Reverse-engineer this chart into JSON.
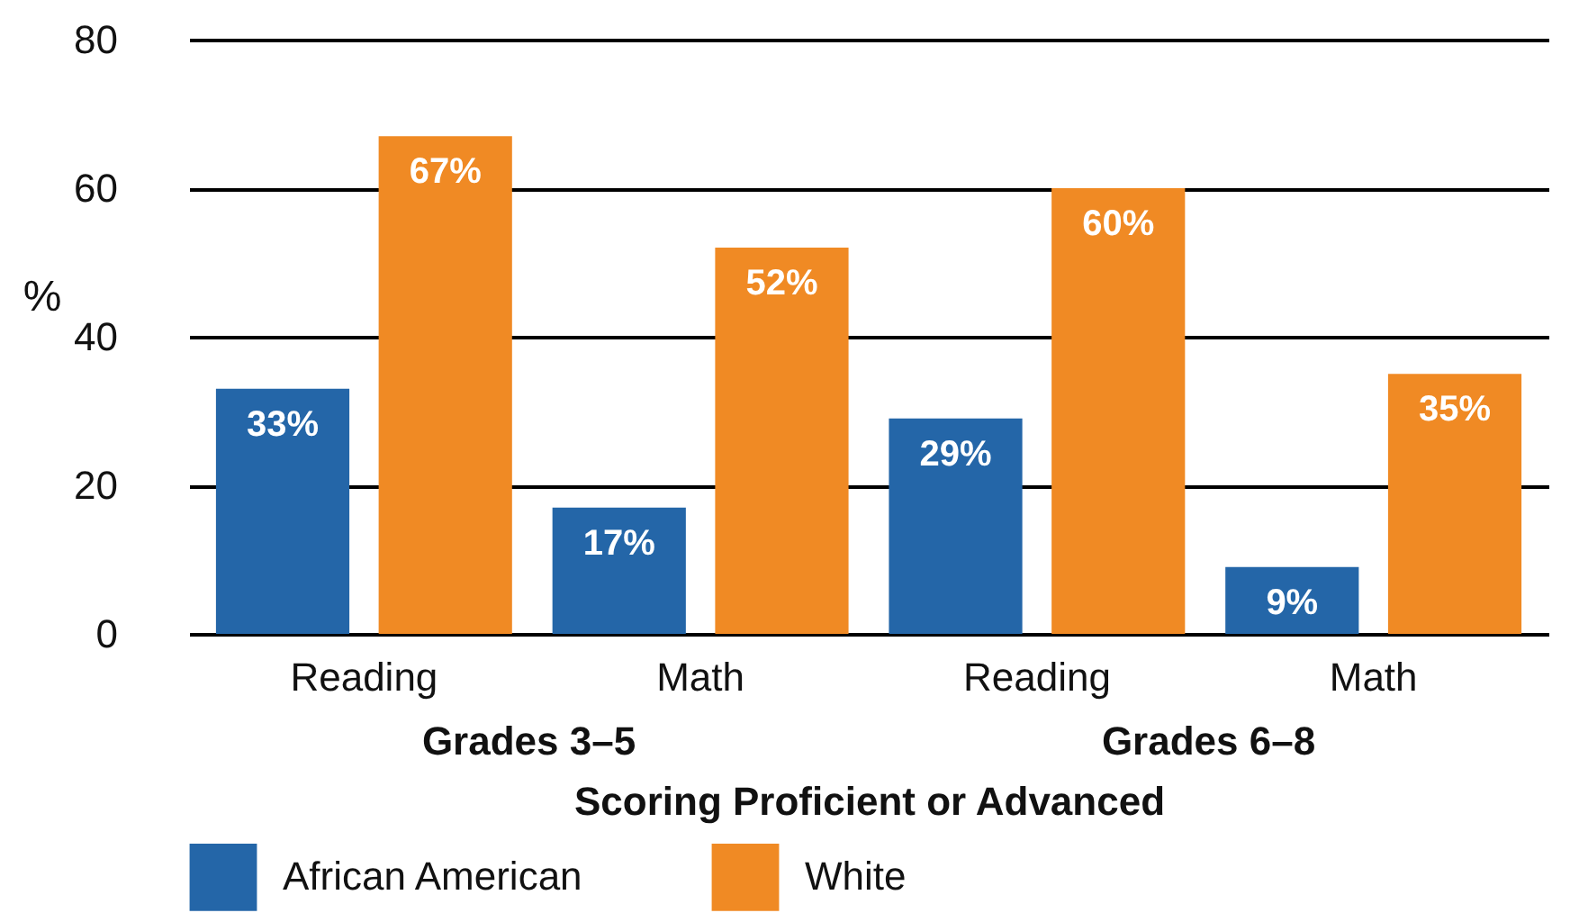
{
  "chart_data": {
    "type": "bar",
    "xlabel": "Scoring Proficient or Advanced",
    "ylabel": "%",
    "categories": [
      "Reading",
      "Math",
      "Reading",
      "Math"
    ],
    "series": [
      {
        "name": "African American",
        "color": "#2466a8",
        "values": [
          33,
          17,
          29,
          9
        ],
        "value_labels": [
          "33%",
          "17%",
          "29%",
          "9%"
        ]
      },
      {
        "name": "White",
        "color": "#f08a24",
        "values": [
          67,
          52,
          60,
          35
        ],
        "value_labels": [
          "67%",
          "52%",
          "60%",
          "35%"
        ]
      }
    ],
    "annotations": [
      "Grades 3–5",
      "Grades 6–8"
    ],
    "ylim": [
      0,
      80
    ],
    "yticks": [
      0,
      20,
      40,
      60,
      80
    ],
    "grid": "y",
    "legend": "bottom"
  }
}
